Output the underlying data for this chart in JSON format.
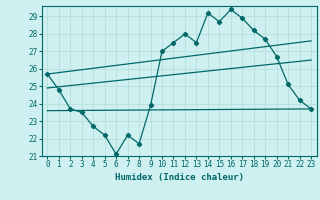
{
  "title": "",
  "xlabel": "Humidex (Indice chaleur)",
  "ylabel": "",
  "bg_color": "#cff0f0",
  "grid_color": "#b8dede",
  "line_color": "#006868",
  "xlim": [
    -0.5,
    23.5
  ],
  "ylim": [
    21,
    29.6
  ],
  "xticks": [
    0,
    1,
    2,
    3,
    4,
    5,
    6,
    7,
    8,
    9,
    10,
    11,
    12,
    13,
    14,
    15,
    16,
    17,
    18,
    19,
    20,
    21,
    22,
    23
  ],
  "yticks": [
    21,
    22,
    23,
    24,
    25,
    26,
    27,
    28,
    29
  ],
  "main_x": [
    0,
    1,
    2,
    3,
    4,
    5,
    6,
    7,
    8,
    9,
    10,
    11,
    12,
    13,
    14,
    15,
    16,
    17,
    18,
    19,
    20,
    21,
    22,
    23
  ],
  "main_y": [
    25.7,
    24.8,
    23.7,
    23.5,
    22.7,
    22.2,
    21.1,
    22.2,
    21.7,
    23.9,
    27.0,
    27.5,
    28.0,
    27.5,
    29.2,
    28.7,
    29.4,
    28.9,
    28.2,
    27.7,
    26.7,
    25.1,
    24.2,
    23.7
  ],
  "upper_line": [
    [
      0,
      25.7
    ],
    [
      23,
      27.6
    ]
  ],
  "mid_line": [
    [
      0,
      24.9
    ],
    [
      23,
      26.5
    ]
  ],
  "flat_line": [
    [
      0,
      23.6
    ],
    [
      23,
      23.7
    ]
  ]
}
